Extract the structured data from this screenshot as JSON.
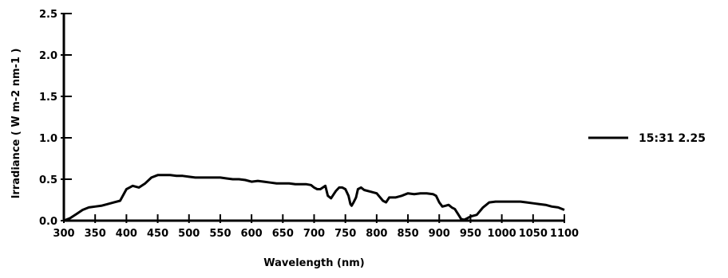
{
  "chart_data": {
    "type": "line",
    "title": "",
    "xlabel": "Wavelength (nm)",
    "ylabel": "Irradiance ( W m-2 nm-1 )",
    "xlim": [
      300,
      1100
    ],
    "ylim": [
      0,
      2.5
    ],
    "x_ticks": [
      300,
      350,
      400,
      450,
      500,
      550,
      600,
      650,
      700,
      750,
      800,
      850,
      900,
      950,
      1000,
      1050,
      1100
    ],
    "y_ticks": [
      0.0,
      0.5,
      1.0,
      1.5,
      2.0,
      2.5
    ],
    "y_tick_labels": [
      "0.0",
      "0.5",
      "1.0",
      "1.5",
      "2.0",
      "2.5"
    ],
    "grid": false,
    "legend_position": "right",
    "series": [
      {
        "name": "15:31 2.25",
        "color": "#000000",
        "x": [
          300,
          310,
          320,
          330,
          340,
          350,
          360,
          370,
          380,
          390,
          400,
          405,
          410,
          420,
          430,
          440,
          450,
          460,
          470,
          480,
          490,
          500,
          510,
          520,
          530,
          540,
          550,
          560,
          570,
          580,
          590,
          600,
          610,
          620,
          630,
          640,
          650,
          660,
          670,
          680,
          687,
          695,
          700,
          705,
          710,
          718,
          722,
          727,
          735,
          740,
          745,
          750,
          755,
          758,
          760,
          763,
          767,
          770,
          775,
          780,
          790,
          800,
          810,
          815,
          820,
          830,
          840,
          850,
          860,
          870,
          880,
          890,
          895,
          900,
          905,
          910,
          915,
          920,
          925,
          930,
          935,
          940,
          945,
          950,
          960,
          970,
          980,
          990,
          1000,
          1010,
          1020,
          1030,
          1040,
          1050,
          1060,
          1070,
          1080,
          1090,
          1100
        ],
        "y": [
          0.0,
          0.03,
          0.08,
          0.13,
          0.16,
          0.17,
          0.18,
          0.2,
          0.22,
          0.24,
          0.38,
          0.4,
          0.42,
          0.4,
          0.45,
          0.52,
          0.55,
          0.55,
          0.55,
          0.54,
          0.54,
          0.53,
          0.52,
          0.52,
          0.52,
          0.52,
          0.52,
          0.51,
          0.5,
          0.5,
          0.49,
          0.47,
          0.48,
          0.47,
          0.46,
          0.45,
          0.45,
          0.45,
          0.44,
          0.44,
          0.44,
          0.43,
          0.4,
          0.38,
          0.38,
          0.42,
          0.3,
          0.27,
          0.36,
          0.4,
          0.4,
          0.38,
          0.3,
          0.2,
          0.18,
          0.22,
          0.28,
          0.38,
          0.4,
          0.37,
          0.35,
          0.33,
          0.24,
          0.22,
          0.28,
          0.28,
          0.3,
          0.33,
          0.32,
          0.33,
          0.33,
          0.32,
          0.3,
          0.22,
          0.17,
          0.18,
          0.19,
          0.16,
          0.14,
          0.08,
          0.02,
          0.01,
          0.03,
          0.05,
          0.07,
          0.16,
          0.22,
          0.23,
          0.23,
          0.23,
          0.23,
          0.23,
          0.22,
          0.21,
          0.2,
          0.19,
          0.17,
          0.16,
          0.13
        ]
      }
    ]
  }
}
